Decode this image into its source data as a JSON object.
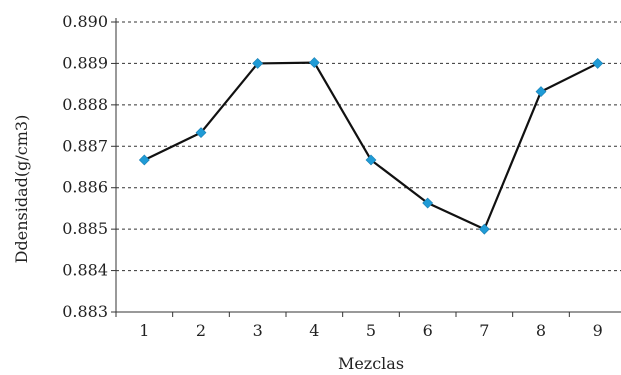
{
  "chart_data": {
    "type": "line",
    "title": "",
    "xlabel": "Mezclas",
    "ylabel": "Ddensidad(g/cm3)",
    "categories": [
      "1",
      "2",
      "3",
      "4",
      "5",
      "6",
      "7",
      "8",
      "9"
    ],
    "series": [
      {
        "values": [
          0.88667,
          0.88733,
          0.889,
          0.88902,
          0.88667,
          0.88563,
          0.885,
          0.88832,
          0.889
        ]
      }
    ],
    "y_ticks": [
      "0.883",
      "0.884",
      "0.885",
      "0.886",
      "0.887",
      "0.888",
      "0.889",
      "0.890"
    ],
    "ylim": [
      0.883,
      0.89
    ],
    "grid": true,
    "colors": {
      "line": "#111111",
      "marker": "#1f9bd6"
    }
  }
}
